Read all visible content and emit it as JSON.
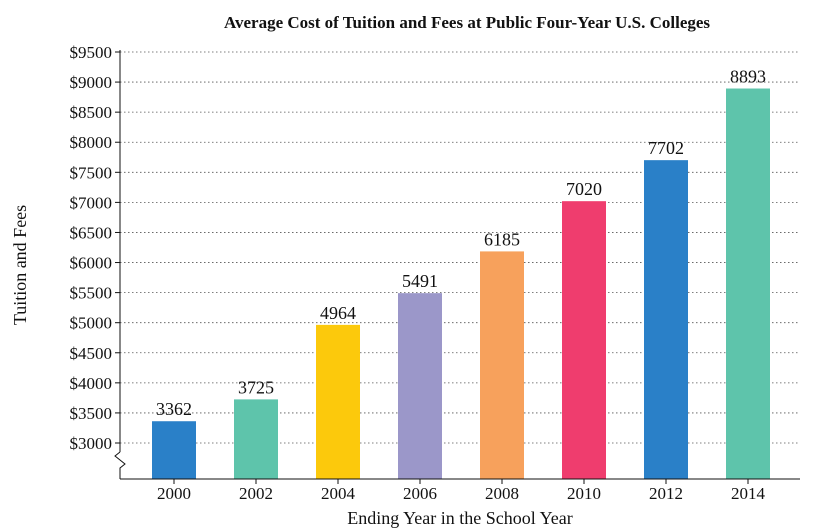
{
  "chart_data": {
    "type": "bar",
    "title": "Average Cost of Tuition and Fees at Public Four-Year U.S. Colleges",
    "xlabel": "Ending Year in the School Year",
    "ylabel": "Tuition and Fees",
    "categories": [
      "2000",
      "2002",
      "2004",
      "2006",
      "2008",
      "2010",
      "2012",
      "2014"
    ],
    "values": [
      3362,
      3725,
      4964,
      5491,
      6185,
      7020,
      7702,
      8893
    ],
    "colors": [
      "#2a80c8",
      "#5ec4ab",
      "#fcc90c",
      "#9b97c9",
      "#f7a15c",
      "#ef3d6e",
      "#2a80c8",
      "#5ec4ab"
    ],
    "ylim": [
      3000,
      9500
    ],
    "yticks": [
      3000,
      3500,
      4000,
      4500,
      5000,
      5500,
      6000,
      6500,
      7000,
      7500,
      8000,
      8500,
      9000,
      9500
    ],
    "ytick_labels": [
      "$3000",
      "$3500",
      "$4000",
      "$4500",
      "$5000",
      "$5500",
      "$6000",
      "$6500",
      "$7000",
      "$7500",
      "$8000",
      "$8500",
      "$9000",
      "$9500"
    ],
    "y_axis_break": true,
    "grid": true
  }
}
